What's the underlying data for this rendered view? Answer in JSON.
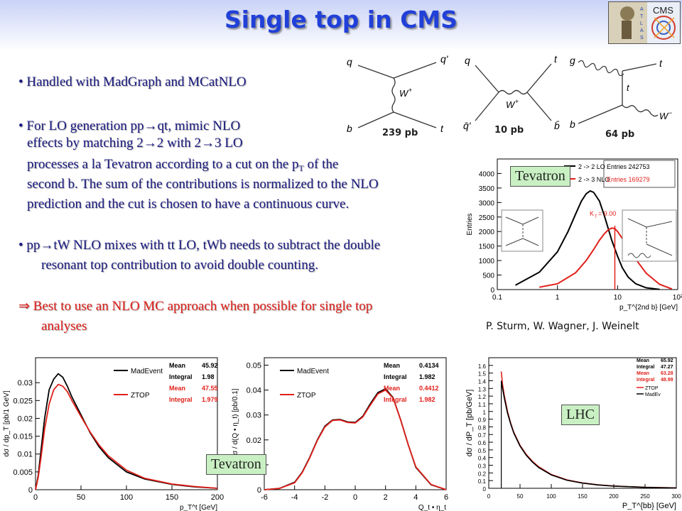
{
  "slide": {
    "title": "Single top in CMS",
    "bullets": [
      "• Handled with MadGraph and MCatNLO",
      "• For LO generation pp→qt, mimic NLO",
      "effects by matching 2→2 with 2→3 LO",
      "processes a la Tevatron according to a cut on the p",
      "T",
      " of the",
      "second b. The sum of the contributions is normalized to the NLO",
      "prediction and the cut is chosen to have a continuous curve.",
      "• pp→tW NLO mixes with tt LO, tWb needs to subtract the double",
      "resonant top contribution to avoid double counting.",
      "⇒ Best to use an NLO MC approach when possible for single top",
      "analyses"
    ],
    "author_credit": "P. Sturm, W. Wagner, J. Weinelt",
    "region_labels": {
      "tevatron_top": "Tevatron",
      "tevatron_bottom": "Tevatron",
      "lhc": "LHC"
    },
    "logos": {
      "cms": "CMS",
      "atlas": "ATLAS"
    }
  },
  "diagrams": {
    "cross_sections": [
      "239 pb",
      "10 pb",
      "64 pb"
    ],
    "d1": {
      "q": "q",
      "qp": "q'",
      "w": "W",
      "wsup": "+",
      "b": "b",
      "t": "t"
    },
    "d2": {
      "q": "q",
      "t": "t",
      "w": "W",
      "wsup": "+",
      "qbar": "q̄'",
      "bbar": "b̄"
    },
    "d3": {
      "g": "g",
      "t": "t",
      "b": "b",
      "w": "W",
      "wsup": "−"
    }
  },
  "chart_data": [
    {
      "type": "line",
      "x_scale": "log",
      "xlim": [
        0.1,
        100
      ],
      "ylim": [
        0,
        4500
      ],
      "ylabel": "Entries",
      "xlabel": "p_T^{2nd b} [GeV]",
      "yticks": [
        "0",
        "500",
        "1000",
        "1500",
        "2000",
        "2500",
        "3000",
        "3500",
        "4000"
      ],
      "xticks": [
        "0.1",
        "1",
        "10",
        "10²"
      ],
      "cut_value": 9.0,
      "legend": [
        "2 -> 2 LO",
        "2 -> 3 NLO"
      ],
      "stats": [
        "Entries 242753",
        "Entries 169279",
        "K",
        "T",
        " = 9.00"
      ],
      "series": [
        {
          "name": "2 -> 2 LO",
          "color": "#000000",
          "x": [
            0.2,
            0.5,
            1,
            1.5,
            2,
            2.5,
            3,
            3.5,
            4,
            5,
            6,
            7,
            8,
            10,
            12,
            15,
            20,
            30,
            50
          ],
          "y": [
            150,
            600,
            1300,
            2000,
            2600,
            3050,
            3300,
            3400,
            3350,
            3050,
            2550,
            2100,
            1700,
            1150,
            750,
            430,
            200,
            60,
            5
          ]
        },
        {
          "name": "2 -> 3 NLO",
          "color": "#e0201a",
          "x": [
            0.5,
            1,
            2,
            3,
            4,
            5,
            6,
            7,
            8,
            9,
            10,
            12,
            15,
            20,
            30,
            50,
            80
          ],
          "y": [
            80,
            200,
            580,
            1000,
            1380,
            1700,
            1920,
            2060,
            2120,
            2100,
            2000,
            1760,
            1450,
            1050,
            560,
            180,
            20
          ]
        }
      ]
    },
    {
      "type": "line",
      "xlim": [
        0,
        200
      ],
      "ylim": [
        0,
        0.037
      ],
      "ylabel": "dσ / dp_T [pb/1 GeV]",
      "xlabel": "p_T^t [GeV]",
      "yticks": [
        "0",
        "0.005",
        "0.01",
        "0.015",
        "0.02",
        "0.025",
        "0.03"
      ],
      "xticks": [
        "0",
        "50",
        "100",
        "150",
        "200"
      ],
      "legend": [
        "MadEvent",
        "ZTOP"
      ],
      "stats": [
        [
          "Mean",
          "45.92"
        ],
        [
          "Integral",
          "1.98"
        ],
        [
          "Mean",
          "47.55"
        ],
        [
          "Integral",
          "1.979"
        ]
      ],
      "series": [
        {
          "name": "MadEvent",
          "color": "#000000",
          "x": [
            0,
            3,
            6,
            10,
            15,
            20,
            25,
            30,
            35,
            40,
            50,
            60,
            70,
            80,
            100,
            120,
            150,
            175,
            200
          ],
          "y": [
            0.0,
            0.004,
            0.011,
            0.02,
            0.028,
            0.031,
            0.0325,
            0.0315,
            0.029,
            0.026,
            0.021,
            0.016,
            0.012,
            0.009,
            0.005,
            0.003,
            0.0015,
            0.0008,
            0.0004
          ]
        },
        {
          "name": "ZTOP",
          "color": "#e0201a",
          "x": [
            0,
            3,
            6,
            10,
            15,
            20,
            25,
            30,
            35,
            40,
            50,
            60,
            70,
            80,
            100,
            120,
            150,
            175,
            200
          ],
          "y": [
            0.0,
            0.0035,
            0.009,
            0.017,
            0.024,
            0.028,
            0.0295,
            0.029,
            0.0275,
            0.025,
            0.0205,
            0.0162,
            0.0125,
            0.0095,
            0.0055,
            0.0032,
            0.0016,
            0.0009,
            0.0004
          ]
        }
      ]
    },
    {
      "type": "line",
      "xlim": [
        -6,
        6
      ],
      "ylim": [
        0,
        0.053
      ],
      "ylabel": "dσ / d(Q • η_t) [pb/0.1]",
      "xlabel": "Q_t • η_t",
      "yticks": [
        "0",
        "0.01",
        "0.02",
        "0.03",
        "0.04",
        "0.05"
      ],
      "xticks": [
        "-6",
        "-4",
        "-2",
        "0",
        "2",
        "4",
        "6"
      ],
      "legend": [
        "MadEvent",
        "ZTOP"
      ],
      "stats": [
        [
          "Mean",
          "0.4134"
        ],
        [
          "Integral",
          "1.982"
        ],
        [
          "Mean",
          "0.4412"
        ],
        [
          "Integral",
          "1.982"
        ]
      ],
      "series": [
        {
          "name": "MadEvent",
          "color": "#000000",
          "x": [
            -6,
            -5,
            -4,
            -3.5,
            -3,
            -2.5,
            -2,
            -1.5,
            -1,
            -0.5,
            0,
            0.5,
            1,
            1.5,
            2,
            2.5,
            3,
            3.5,
            4,
            5,
            6
          ],
          "y": [
            0.0,
            0.0005,
            0.003,
            0.007,
            0.013,
            0.02,
            0.0255,
            0.028,
            0.0282,
            0.0272,
            0.027,
            0.0295,
            0.0345,
            0.039,
            0.0405,
            0.037,
            0.028,
            0.018,
            0.009,
            0.002,
            0.0
          ]
        },
        {
          "name": "ZTOP",
          "color": "#e0201a",
          "x": [
            -6,
            -5,
            -4,
            -3.5,
            -3,
            -2.5,
            -2,
            -1.5,
            -1,
            -0.5,
            0,
            0.5,
            1,
            1.5,
            2,
            2.5,
            3,
            3.5,
            4,
            5,
            6
          ],
          "y": [
            0.0,
            0.0005,
            0.0028,
            0.0068,
            0.0128,
            0.0198,
            0.0252,
            0.0278,
            0.028,
            0.027,
            0.0268,
            0.0292,
            0.034,
            0.0385,
            0.04,
            0.0368,
            0.028,
            0.018,
            0.0092,
            0.0021,
            0.0
          ]
        }
      ]
    },
    {
      "type": "line",
      "xlim": [
        0,
        300
      ],
      "ylim": [
        0,
        1.7
      ],
      "ylabel": "dσ / dP_T [pb/GeV]",
      "xlabel": "P_T^{bb} [GeV]",
      "yticks": [
        "0",
        "0.1",
        "0.2",
        "0.3",
        "0.4",
        "0.5",
        "0.6",
        "0.7",
        "0.8",
        "0.9",
        "1",
        "1.1",
        "1.2",
        "1.3",
        "1.4",
        "1.5",
        "1.6"
      ],
      "xticks": [
        "0",
        "50",
        "100",
        "150",
        "200",
        "250",
        "300"
      ],
      "legend": [
        "ZTOP",
        "MadEv"
      ],
      "stats": [
        [
          "Mean",
          "65.92"
        ],
        [
          "Integral",
          "47.27"
        ],
        [
          "Mean",
          "63.28"
        ],
        [
          "Integral",
          "48.99"
        ]
      ],
      "series": [
        {
          "name": "ZTOP",
          "color": "#e0201a",
          "x": [
            20,
            22,
            25,
            30,
            35,
            40,
            50,
            60,
            70,
            80,
            100,
            125,
            150,
            175,
            200,
            250,
            300
          ],
          "y": [
            1.52,
            1.35,
            1.2,
            1.0,
            0.85,
            0.73,
            0.56,
            0.44,
            0.35,
            0.28,
            0.18,
            0.11,
            0.07,
            0.045,
            0.03,
            0.013,
            0.006
          ]
        },
        {
          "name": "MadEv",
          "color": "#000000",
          "x": [
            20,
            22,
            25,
            30,
            35,
            40,
            50,
            60,
            70,
            80,
            100,
            125,
            150,
            175,
            200,
            250,
            300
          ],
          "y": [
            1.4,
            1.3,
            1.17,
            0.98,
            0.84,
            0.72,
            0.55,
            0.43,
            0.34,
            0.27,
            0.175,
            0.105,
            0.067,
            0.043,
            0.029,
            0.012,
            0.005
          ]
        }
      ]
    }
  ]
}
